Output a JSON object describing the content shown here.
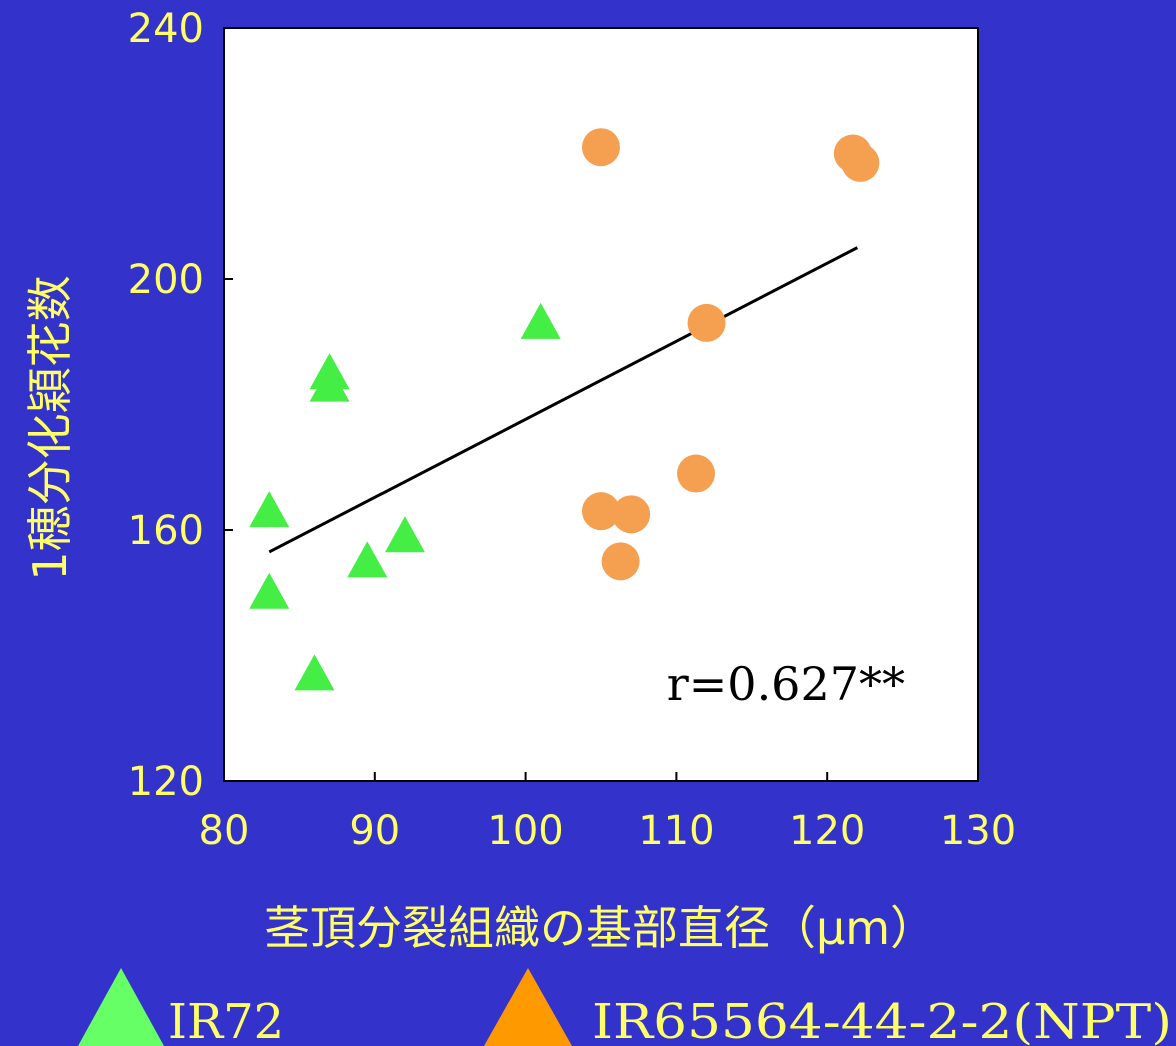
{
  "colors": {
    "background": "#3333CC",
    "plot_background": "#FFFFFF",
    "text": "#FFFF66",
    "ir72": "#44EE44",
    "npt": "#F5A050",
    "legend_npt": "#FF9900",
    "regression": "#000000"
  },
  "chart_data": {
    "type": "scatter",
    "title": "",
    "xlabel": "茎頂分裂組織の基部直径（μm）",
    "ylabel": "1穂分化穎花数",
    "xlim": [
      80,
      130
    ],
    "ylim": [
      120,
      240
    ],
    "xticks": [
      "80",
      "90",
      "100",
      "110",
      "120",
      "130"
    ],
    "yticks": [
      "120",
      "160",
      "200",
      "240"
    ],
    "grid": false,
    "annotation": "r=0.627**",
    "regression_line": {
      "x": [
        83,
        122
      ],
      "y": [
        156.5,
        205
      ]
    },
    "series": [
      {
        "name": "IR72",
        "marker": "triangle",
        "points": [
          {
            "x": 83,
            "y": 163
          },
          {
            "x": 83,
            "y": 150
          },
          {
            "x": 86,
            "y": 137
          },
          {
            "x": 87,
            "y": 185
          },
          {
            "x": 87,
            "y": 183
          },
          {
            "x": 89.5,
            "y": 155
          },
          {
            "x": 92,
            "y": 159
          },
          {
            "x": 101,
            "y": 193
          }
        ]
      },
      {
        "name": "IR65564-44-2-2(NPT)",
        "marker": "circle",
        "points": [
          {
            "x": 105,
            "y": 221
          },
          {
            "x": 105,
            "y": 163
          },
          {
            "x": 106.3,
            "y": 155
          },
          {
            "x": 107,
            "y": 162.5
          },
          {
            "x": 111.3,
            "y": 169
          },
          {
            "x": 112,
            "y": 193
          },
          {
            "x": 121.7,
            "y": 220
          },
          {
            "x": 122.2,
            "y": 218.5
          }
        ]
      }
    ]
  },
  "legend": {
    "placement": "bottom",
    "items": [
      {
        "label": "IR72",
        "marker": "triangle-icon"
      },
      {
        "label": "IR65564-44-2-2(NPT)",
        "marker": "triangle-icon"
      }
    ]
  }
}
